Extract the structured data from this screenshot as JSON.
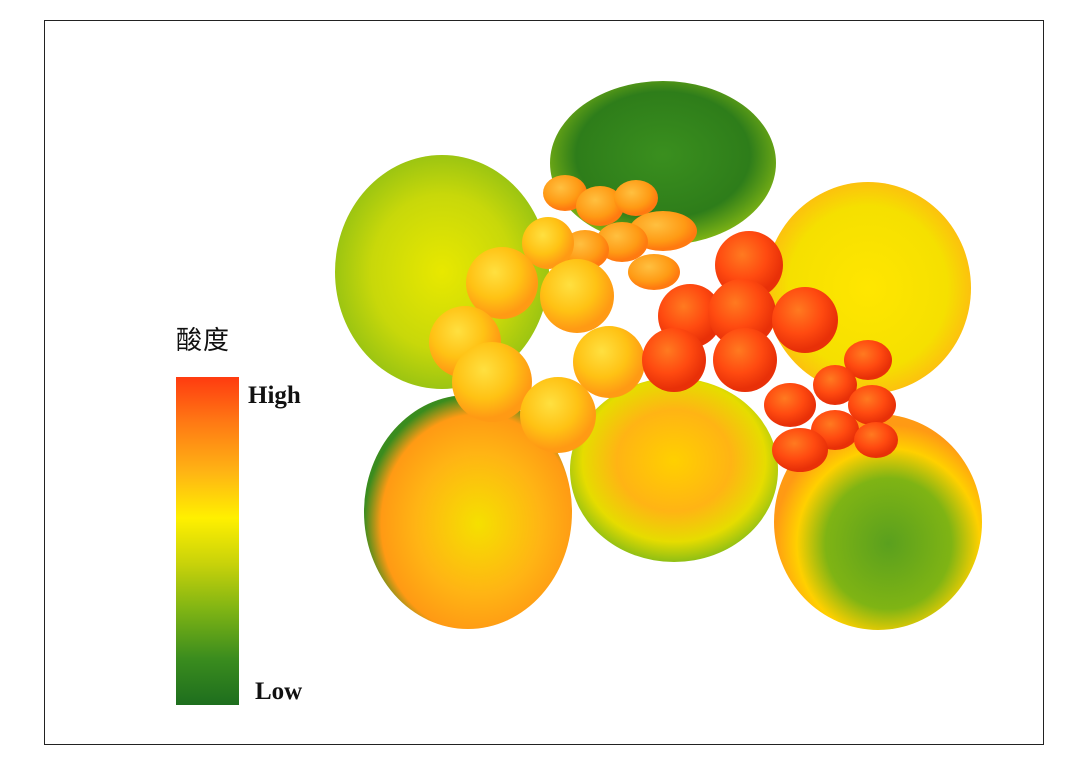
{
  "legend": {
    "title": "酸度",
    "high_label": "High",
    "low_label": "Low",
    "colors": [
      "#ff3b10",
      "#ff7a14",
      "#ffb414",
      "#fff000",
      "#c8d20a",
      "#7fb414",
      "#3a8c1e",
      "#1e6e1e"
    ]
  }
}
